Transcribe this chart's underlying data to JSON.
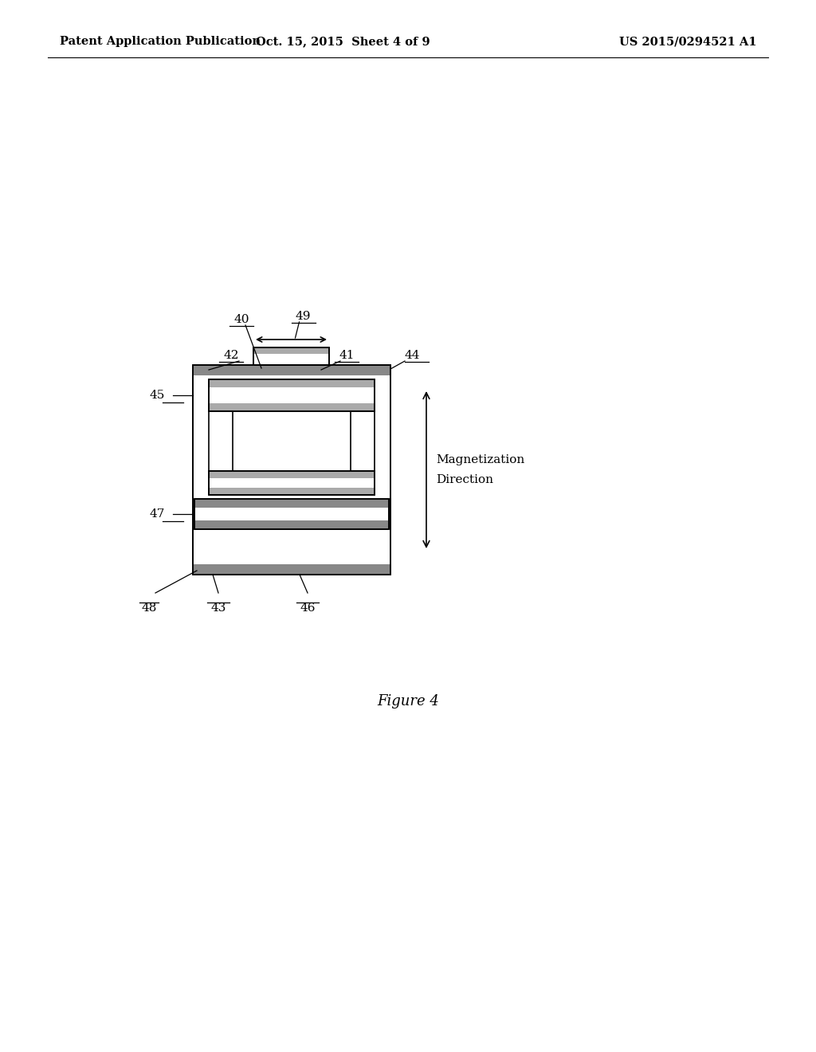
{
  "title_left": "Patent Application Publication",
  "title_center": "Oct. 15, 2015  Sheet 4 of 9",
  "title_right": "US 2015/0294521 A1",
  "figure_caption": "Figure 4",
  "background_color": "#ffffff",
  "line_color": "#000000",
  "dark_gray": "#555555",
  "lw": 1.2
}
